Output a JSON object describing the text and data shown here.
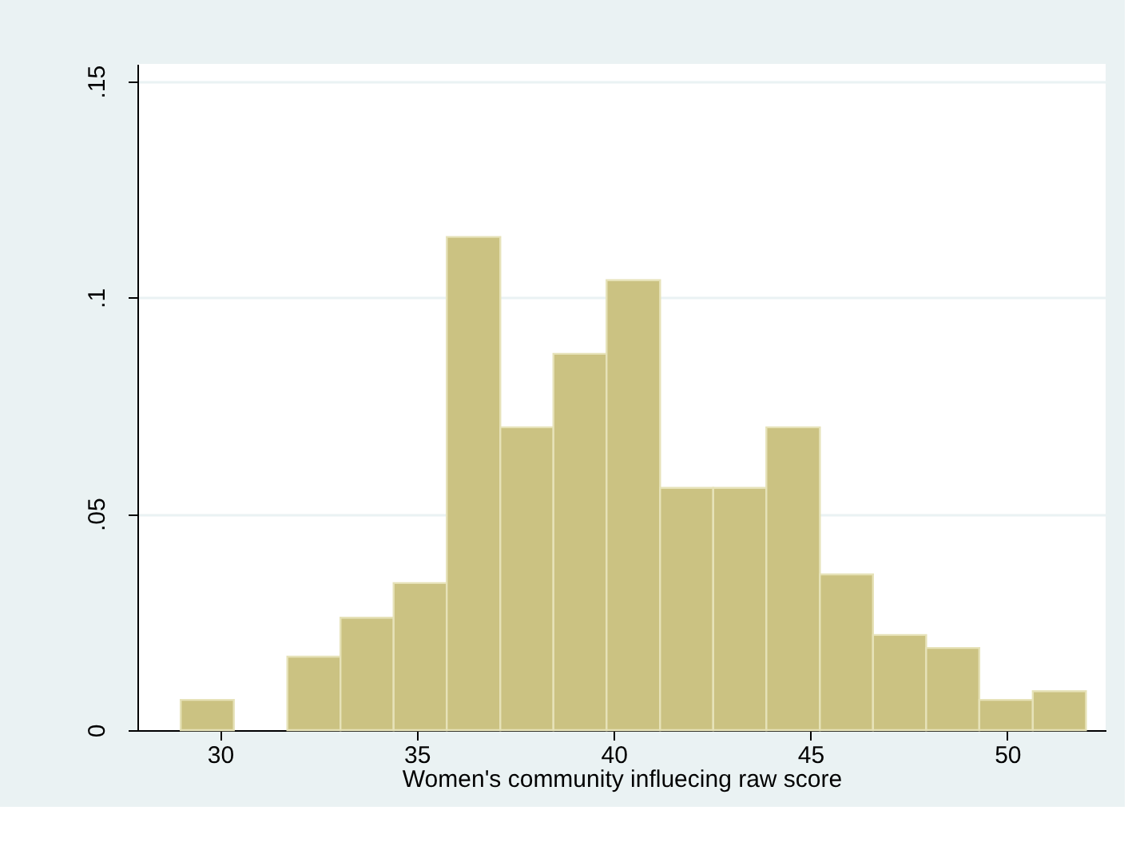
{
  "chart_data": {
    "type": "histogram",
    "xlabel": "Women's community influecing raw score",
    "bins": [
      29,
      30.35,
      31.71,
      33.06,
      34.41,
      35.76,
      37.12,
      38.47,
      39.82,
      41.18,
      42.53,
      43.88,
      45.24,
      46.59,
      47.94,
      49.29,
      50.65,
      52
    ],
    "values": [
      0.007,
      0,
      0.017,
      0.026,
      0.034,
      0.114,
      0.07,
      0.087,
      0.104,
      0.056,
      0.056,
      0.07,
      0.036,
      0.022,
      0.019,
      0.007,
      0.009
    ],
    "color": "#cbc282",
    "xlim": [
      27.9,
      52.5
    ],
    "xticks": [
      30,
      35,
      40,
      45,
      50
    ],
    "ylim": [
      0,
      0.154
    ],
    "yticks": [
      {
        "value": 0,
        "label": "0"
      },
      {
        "value": 0.05,
        "label": ".05"
      },
      {
        "value": 0.1,
        "label": ".1"
      },
      {
        "value": 0.15,
        "label": ".15"
      }
    ],
    "grid": "y"
  }
}
